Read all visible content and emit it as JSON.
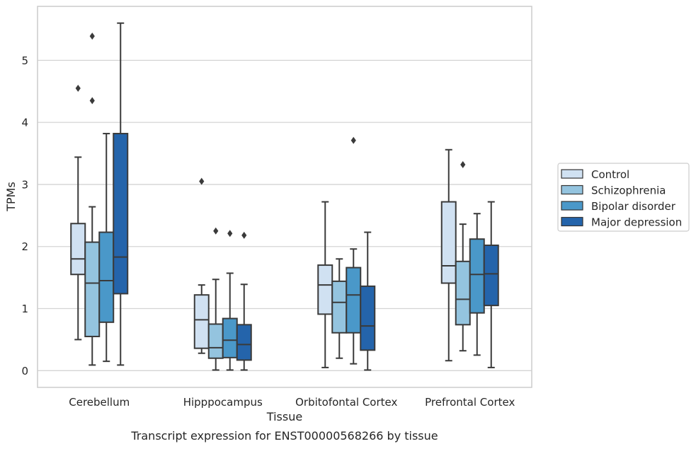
{
  "caption": "Transcript expression for ENST00000568266 by tissue",
  "chart_data": {
    "type": "box",
    "xlabel": "Tissue",
    "ylabel": "TPMs",
    "ylim": [
      -0.27,
      5.87
    ],
    "yticks": [
      0,
      1,
      2,
      3,
      4,
      5
    ],
    "grid": "horizontal",
    "legend_position": "right",
    "categories": [
      "Cerebellum",
      "Hipppocampus",
      "Orbitofontal Cortex",
      "Prefrontal Cortex"
    ],
    "series": [
      {
        "name": "Control",
        "color": "#d0e1f2",
        "boxes": [
          {
            "whislo": 0.5,
            "q1": 1.55,
            "med": 1.8,
            "q3": 2.37,
            "whishi": 3.44,
            "fliers": [
              4.55
            ]
          },
          {
            "whislo": 0.28,
            "q1": 0.36,
            "med": 0.82,
            "q3": 1.22,
            "whishi": 1.38,
            "fliers": [
              3.05
            ]
          },
          {
            "whislo": 0.05,
            "q1": 0.91,
            "med": 1.38,
            "q3": 1.7,
            "whishi": 2.72,
            "fliers": []
          },
          {
            "whislo": 0.16,
            "q1": 1.41,
            "med": 1.69,
            "q3": 2.72,
            "whishi": 3.56,
            "fliers": []
          }
        ]
      },
      {
        "name": "Schizophrenia",
        "color": "#94c4df",
        "boxes": [
          {
            "whislo": 0.09,
            "q1": 0.55,
            "med": 1.41,
            "q3": 2.07,
            "whishi": 2.64,
            "fliers": [
              5.39,
              4.35
            ]
          },
          {
            "whislo": 0.01,
            "q1": 0.2,
            "med": 0.37,
            "q3": 0.75,
            "whishi": 1.47,
            "fliers": [
              2.25
            ]
          },
          {
            "whislo": 0.2,
            "q1": 0.61,
            "med": 1.1,
            "q3": 1.44,
            "whishi": 1.8,
            "fliers": []
          },
          {
            "whislo": 0.32,
            "q1": 0.74,
            "med": 1.15,
            "q3": 1.76,
            "whishi": 2.36,
            "fliers": [
              3.32
            ]
          }
        ]
      },
      {
        "name": "Bipolar disorder",
        "color": "#4a98c9",
        "boxes": [
          {
            "whislo": 0.15,
            "q1": 0.78,
            "med": 1.45,
            "q3": 2.23,
            "whishi": 3.82,
            "fliers": []
          },
          {
            "whislo": 0.01,
            "q1": 0.21,
            "med": 0.49,
            "q3": 0.84,
            "whishi": 1.57,
            "fliers": [
              2.21
            ]
          },
          {
            "whislo": 0.11,
            "q1": 0.61,
            "med": 1.22,
            "q3": 1.66,
            "whishi": 1.96,
            "fliers": [
              3.71
            ]
          },
          {
            "whislo": 0.25,
            "q1": 0.93,
            "med": 1.55,
            "q3": 2.12,
            "whishi": 2.53,
            "fliers": []
          }
        ]
      },
      {
        "name": "Major depression",
        "color": "#2464ab",
        "boxes": [
          {
            "whislo": 0.09,
            "q1": 1.24,
            "med": 1.83,
            "q3": 3.82,
            "whishi": 5.6,
            "fliers": []
          },
          {
            "whislo": 0.01,
            "q1": 0.17,
            "med": 0.42,
            "q3": 0.74,
            "whishi": 1.39,
            "fliers": [
              2.18
            ]
          },
          {
            "whislo": 0.01,
            "q1": 0.33,
            "med": 0.72,
            "q3": 1.36,
            "whishi": 2.23,
            "fliers": []
          },
          {
            "whislo": 0.05,
            "q1": 1.05,
            "med": 1.56,
            "q3": 2.02,
            "whishi": 2.72,
            "fliers": []
          }
        ]
      }
    ]
  }
}
